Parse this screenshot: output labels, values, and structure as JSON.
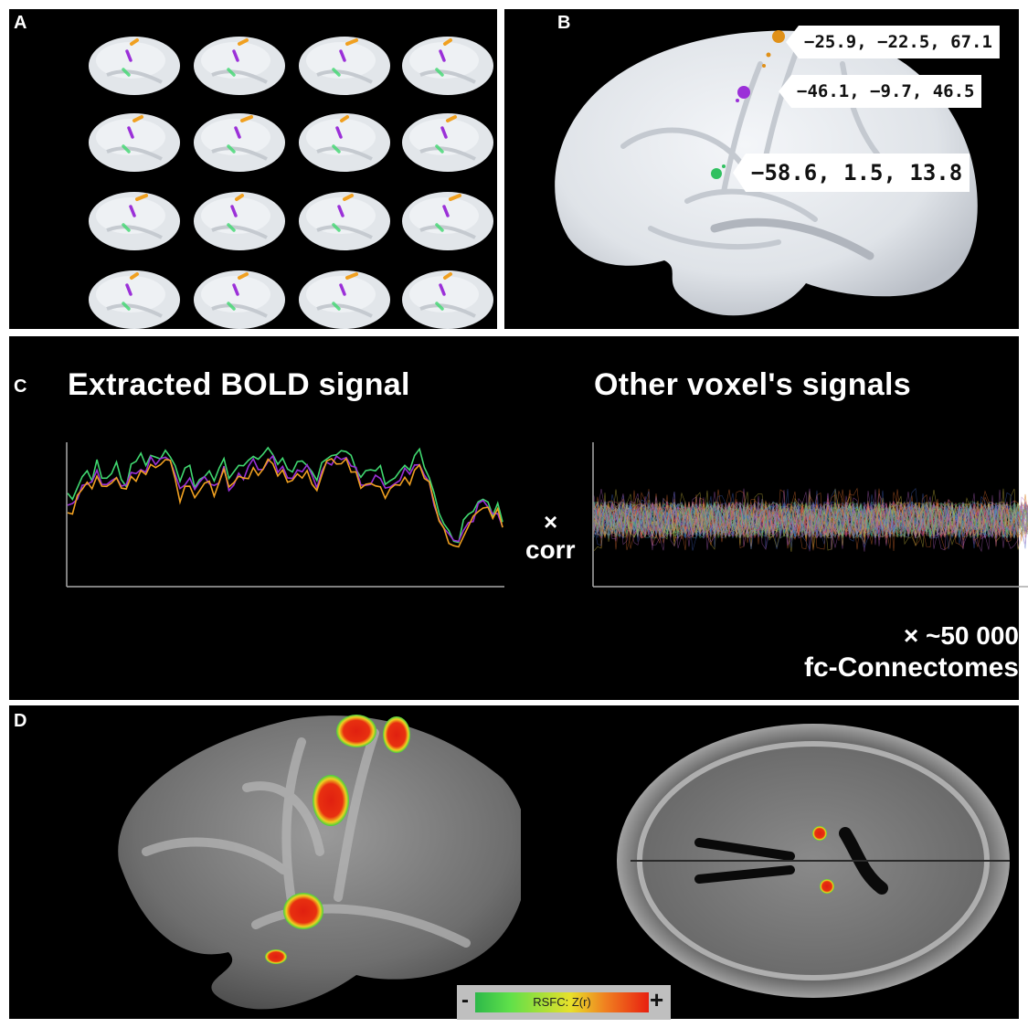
{
  "panels": {
    "A": {
      "label": "A"
    },
    "B": {
      "label": "B",
      "coordinates": [
        "−25.9, −22.5, 67.1",
        "−46.1, −9.7, 46.5",
        "−58.6, 1.5, 13.8"
      ]
    },
    "C": {
      "label": "C",
      "left_title": "Extracted BOLD signal",
      "right_title": "Other voxel's signals",
      "times_symbol": "×",
      "corr_label": "corr",
      "multiplier": "× ~50 000",
      "connectome_label": "fc-Connectomes"
    },
    "D": {
      "label": "D",
      "colorbar": {
        "minus": "-",
        "plus": "+",
        "label": "RSFC: Z(r)"
      }
    }
  },
  "colors": {
    "orange": "#f0a020",
    "purple": "#9b30d8",
    "green": "#40d870",
    "background": "#000000",
    "brain": "#e8ecf0"
  }
}
